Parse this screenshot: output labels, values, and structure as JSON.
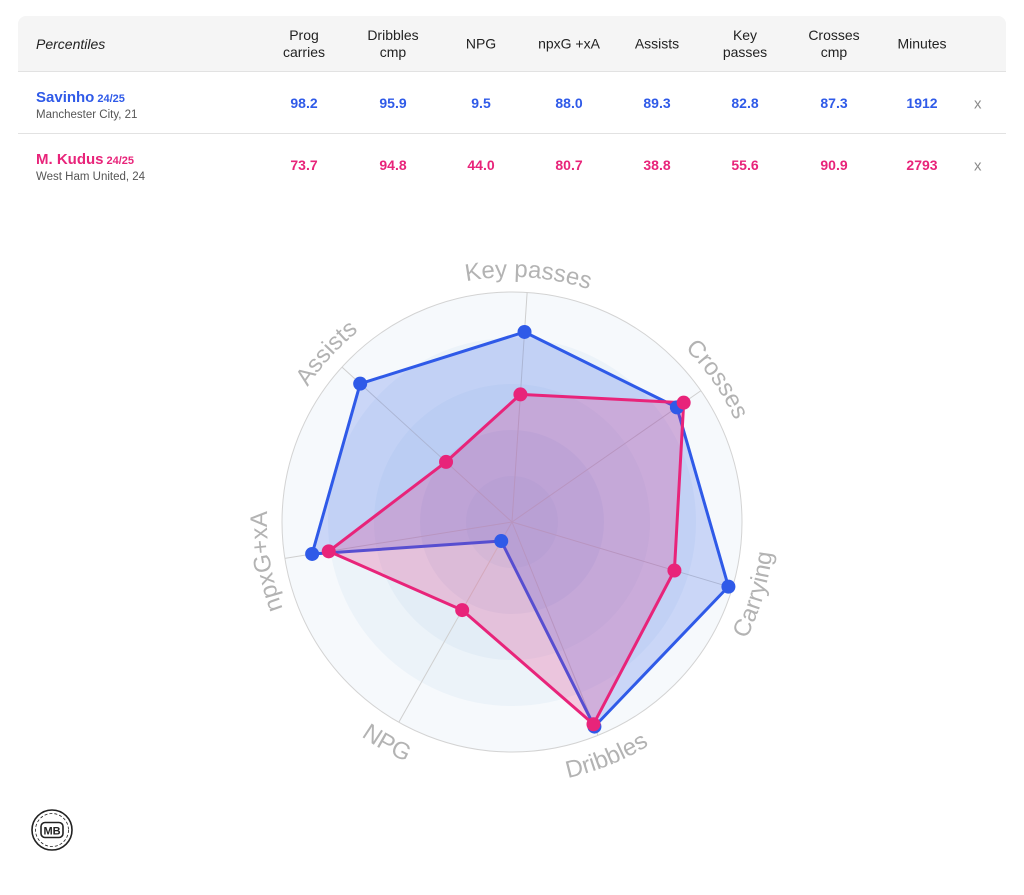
{
  "table": {
    "percentiles_label": "Percentiles",
    "columns": [
      "Prog\ncarries",
      "Dribbles\ncmp",
      "NPG",
      "npxG +xA",
      "Assists",
      "Key\npasses",
      "Crosses\ncmp",
      "Minutes"
    ],
    "players": [
      {
        "name": "Savinho",
        "season": "24/25",
        "club": "Manchester City, 21",
        "values": [
          "98.2",
          "95.9",
          "9.5",
          "88.0",
          "89.3",
          "82.8",
          "87.3",
          "1912"
        ],
        "remove_label": "x",
        "color": "#2f5ae8"
      },
      {
        "name": "M. Kudus",
        "season": "24/25",
        "club": "West Ham United, 24",
        "values": [
          "73.7",
          "94.8",
          "44.0",
          "80.7",
          "38.8",
          "55.6",
          "90.9",
          "2793"
        ],
        "remove_label": "x",
        "color": "#e8247a"
      }
    ]
  },
  "chart_data": {
    "type": "radar",
    "axes": [
      "Key passes",
      "Crosses",
      "Carrying",
      "Dribbles",
      "NPG",
      "npxG+xA",
      "Assists"
    ],
    "range": [
      0,
      100
    ],
    "series": [
      {
        "name": "Savinho",
        "color": "#2f5ae8",
        "values": [
          82.8,
          87.3,
          98.2,
          95.9,
          9.5,
          88.0,
          89.3
        ]
      },
      {
        "name": "M. Kudus",
        "color": "#e8247a",
        "values": [
          55.6,
          90.9,
          73.7,
          94.8,
          44.0,
          80.7,
          38.8
        ]
      }
    ]
  },
  "logo": {
    "text": "MB"
  }
}
